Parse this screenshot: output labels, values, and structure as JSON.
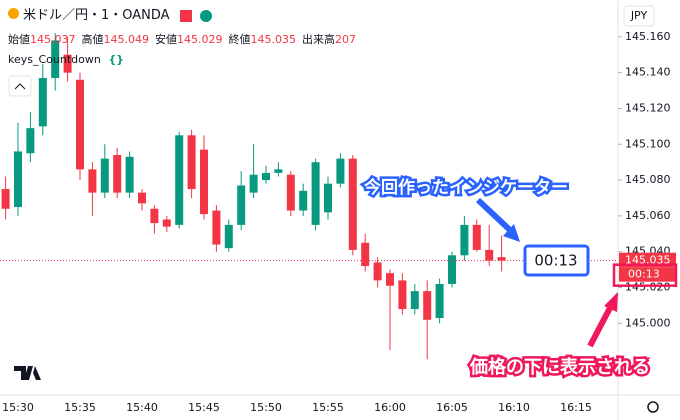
{
  "header": {
    "symbol": "米ドル／円・1・OANDA",
    "ohlc": [
      {
        "label": "始値",
        "value": "145.037"
      },
      {
        "label": "高値",
        "value": "145.049"
      },
      {
        "label": "安値",
        "value": "145.029"
      },
      {
        "label": "終値",
        "value": "145.035"
      },
      {
        "label": "出来高",
        "value": "207"
      }
    ],
    "indicator": "keys_Countdown",
    "indicator_icon": "{}"
  },
  "chart_data": {
    "type": "candlestick",
    "categories": [
      null,
      "15:30",
      null,
      null,
      null,
      null,
      "15:35",
      null,
      null,
      null,
      null,
      "15:40",
      null,
      null,
      null,
      null,
      "15:45",
      null,
      null,
      null,
      null,
      "15:50",
      null,
      null,
      null,
      null,
      "15:55",
      null,
      null,
      null,
      null,
      "16:00",
      null,
      null,
      null,
      null,
      "16:05",
      null,
      null,
      null,
      null,
      "16:10",
      null,
      null,
      null,
      null,
      "16:15"
    ],
    "open": [
      145.075,
      145.065,
      145.095,
      145.11,
      145.137,
      145.15,
      145.136,
      145.086,
      145.073,
      145.094,
      145.073,
      145.073,
      145.064,
      145.058,
      145.055,
      145.105,
      145.097,
      145.063,
      145.042,
      145.055,
      145.073,
      145.08,
      145.084,
      145.083,
      145.063,
      145.055,
      145.062,
      145.078,
      145.092,
      145.045,
      145.034,
      145.028,
      145.024,
      145.008,
      145.018,
      145.003,
      145.022,
      145.038,
      145.055,
      145.041,
      145.037,
      null,
      null,
      null,
      null,
      null,
      null
    ],
    "high": [
      145.082,
      145.112,
      145.118,
      145.145,
      145.162,
      145.16,
      145.14,
      145.09,
      145.1,
      145.098,
      145.096,
      145.075,
      145.066,
      145.06,
      145.107,
      145.108,
      145.105,
      145.066,
      145.058,
      145.085,
      145.1,
      145.088,
      145.09,
      145.085,
      145.078,
      145.092,
      145.082,
      145.095,
      145.094,
      145.05,
      145.037,
      145.03,
      145.028,
      145.022,
      145.024,
      145.025,
      145.04,
      145.06,
      145.058,
      145.055,
      145.049,
      null,
      null,
      null,
      null,
      null,
      null
    ],
    "low": [
      145.058,
      145.06,
      145.09,
      145.105,
      145.13,
      145.135,
      145.08,
      145.06,
      145.07,
      145.07,
      145.07,
      145.063,
      145.05,
      145.051,
      145.053,
      145.07,
      145.058,
      145.04,
      145.04,
      145.052,
      145.07,
      145.078,
      145.082,
      145.06,
      145.06,
      145.052,
      145.058,
      145.076,
      145.038,
      145.029,
      145.02,
      144.985,
      145.005,
      145.005,
      144.98,
      145.0,
      145.02,
      145.035,
      145.04,
      145.032,
      145.029,
      null,
      null,
      null,
      null,
      null,
      null
    ],
    "close": [
      145.064,
      145.096,
      145.109,
      145.137,
      145.158,
      145.14,
      145.086,
      145.073,
      145.092,
      145.073,
      145.093,
      145.067,
      145.056,
      145.054,
      145.105,
      145.075,
      145.061,
      145.044,
      145.055,
      145.077,
      145.083,
      145.084,
      145.086,
      145.063,
      145.074,
      145.09,
      145.078,
      145.092,
      145.041,
      145.032,
      145.024,
      145.021,
      145.008,
      145.018,
      145.002,
      145.022,
      145.038,
      145.055,
      145.041,
      145.035,
      145.035,
      null,
      null,
      null,
      null,
      null,
      null
    ],
    "up_color": "#089981",
    "down_color": "#f23645",
    "ylim": [
      144.96,
      145.18
    ],
    "yticks": [
      {
        "value": 145.0,
        "label": "145.000"
      },
      {
        "value": 145.02,
        "label": "145.020"
      },
      {
        "value": 145.04,
        "label": "145.040"
      },
      {
        "value": 145.06,
        "label": "145.060"
      },
      {
        "value": 145.08,
        "label": "145.080"
      },
      {
        "value": 145.1,
        "label": "145.100"
      },
      {
        "value": 145.12,
        "label": "145.120"
      },
      {
        "value": 145.14,
        "label": "145.140"
      },
      {
        "value": 145.16,
        "label": "145.160"
      }
    ],
    "currency": "JPY",
    "last_price": 145.035,
    "countdown": "00:13",
    "annotations": [
      "今回作ったインジケーター",
      "価格の下に表示される"
    ]
  }
}
